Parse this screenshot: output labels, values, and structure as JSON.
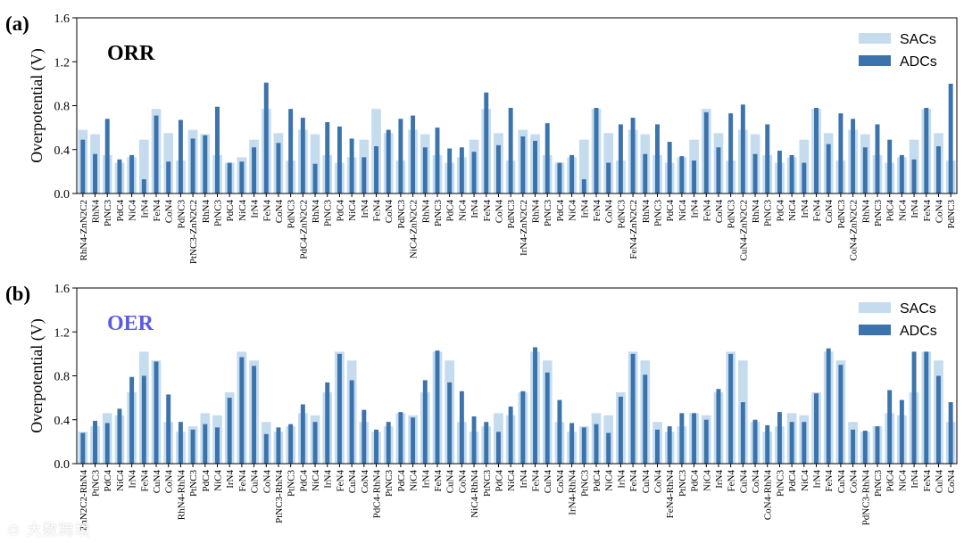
{
  "chart_data": [
    {
      "type": "bar",
      "panel_label": "(a)",
      "title": "ORR",
      "title_color": "#000000",
      "ylabel": "Overpotential (V)",
      "xlabel": "",
      "ylim": [
        0,
        1.6
      ],
      "yticks": [
        "0.0",
        "0.4",
        "0.8",
        "1.2",
        "1.6"
      ],
      "legend_position": "top-right",
      "categories": [
        "RhN4-ZnN2C2",
        "RhN4",
        "PtNC3",
        "PdC4",
        "NiC4",
        "IrN4",
        "FeN4",
        "CoN4",
        "PdNC3",
        "PtNC3-ZnN2C2",
        "RhN4",
        "PtNC3",
        "PdC4",
        "NiC4",
        "IrN4",
        "FeN4",
        "CoN4",
        "PdNC3",
        "PdC4-ZnN2C2",
        "RhN4",
        "PtNC3",
        "PdC4",
        "NiC4",
        "IrN4",
        "FeN4",
        "CoN4",
        "PdNC3",
        "NiC4-ZnN2C2",
        "RhN4",
        "PtNC3",
        "PdC4",
        "NiC4",
        "IrN4",
        "FeN4",
        "CoN4",
        "PdNC3",
        "IrN4-ZnN2C2",
        "RhN4",
        "PtNC3",
        "PdC4",
        "NiC4",
        "IrN4",
        "FeN4",
        "CoN4",
        "PdNC3",
        "FeN4-ZnN2C2",
        "RhN4",
        "PtNC3",
        "PdC4",
        "NiC4",
        "IrN4",
        "FeN4",
        "CoN4",
        "PdNC3",
        "CuN4-ZnN2C2",
        "RhN4",
        "PtNC3",
        "PdC4",
        "NiC4",
        "IrN4",
        "FeN4",
        "CoN4",
        "PdNC3",
        "CoN4-ZnN2C2",
        "RhN4",
        "PtNC3",
        "PdC4",
        "NiC4",
        "IrN4",
        "FeN4",
        "CoN4",
        "PdNC3"
      ],
      "series": [
        {
          "name": "SACs",
          "color": "#c5dcef",
          "values": [
            0.58,
            0.54,
            0.35,
            0.28,
            0.33,
            0.49,
            0.77,
            0.55,
            0.3,
            0.58,
            0.54,
            0.35,
            0.28,
            0.33,
            0.49,
            0.77,
            0.55,
            0.3,
            0.58,
            0.54,
            0.35,
            0.28,
            0.33,
            0.49,
            0.77,
            0.55,
            0.3,
            0.58,
            0.54,
            0.35,
            0.28,
            0.33,
            0.49,
            0.77,
            0.55,
            0.3,
            0.58,
            0.54,
            0.35,
            0.28,
            0.33,
            0.49,
            0.77,
            0.55,
            0.3,
            0.58,
            0.54,
            0.35,
            0.28,
            0.33,
            0.49,
            0.77,
            0.55,
            0.3,
            0.58,
            0.54,
            0.35,
            0.28,
            0.33,
            0.49,
            0.77,
            0.55,
            0.3,
            0.58,
            0.54,
            0.35,
            0.28,
            0.33,
            0.49,
            0.77,
            0.55,
            0.3
          ]
        },
        {
          "name": "ADCs",
          "color": "#3b73ac",
          "values": [
            0.49,
            0.36,
            0.68,
            0.31,
            0.35,
            0.13,
            0.71,
            0.29,
            0.67,
            0.5,
            0.53,
            0.79,
            0.28,
            0.29,
            0.42,
            1.01,
            0.46,
            0.77,
            0.69,
            0.27,
            0.65,
            0.61,
            0.5,
            0.33,
            0.43,
            0.58,
            0.68,
            0.71,
            0.42,
            0.6,
            0.41,
            0.42,
            0.38,
            0.92,
            0.44,
            0.78,
            0.52,
            0.48,
            0.64,
            0.28,
            0.35,
            0.13,
            0.78,
            0.28,
            0.63,
            0.69,
            0.36,
            0.63,
            0.47,
            0.34,
            0.3,
            0.74,
            0.42,
            0.73,
            0.81,
            0.36,
            0.63,
            0.39,
            0.35,
            0.28,
            0.78,
            0.45,
            0.73,
            0.68,
            0.42,
            0.63,
            0.49,
            0.35,
            0.31,
            0.78,
            0.43,
            1.0
          ]
        }
      ]
    },
    {
      "type": "bar",
      "panel_label": "(b)",
      "title": "OER",
      "title_color": "#5a5ae8",
      "ylabel": "Overpotential (V)",
      "xlabel": "",
      "ylim": [
        0,
        1.6
      ],
      "yticks": [
        "0.0",
        "0.4",
        "0.8",
        "1.2",
        "1.6"
      ],
      "legend_position": "top-right",
      "categories": [
        "ZnN2C2-RhN4",
        "PtNC3",
        "PdC4",
        "NiC4",
        "IrN4",
        "FeN4",
        "CuN4",
        "CoN4",
        "RhN4-RhN4",
        "PtNC3",
        "PdC4",
        "NiC4",
        "IrN4",
        "FeN4",
        "CuN4",
        "CoN4",
        "PtNC3-RhN4",
        "PtNC3",
        "PdC4",
        "NiC4",
        "IrN4",
        "FeN4",
        "CuN4",
        "CoN4",
        "PdC4-RhN4",
        "PtNC3",
        "PdC4",
        "NiC4",
        "IrN4",
        "FeN4",
        "CuN4",
        "CoN4",
        "NiC4-RhN4",
        "PtNC3",
        "PdC4",
        "NiC4",
        "IrN4",
        "FeN4",
        "CuN4",
        "CoN4",
        "IrN4-RhN4",
        "PtNC3",
        "PdC4",
        "NiC4",
        "IrN4",
        "FeN4",
        "CuN4",
        "CoN4",
        "FeN4-RhN4",
        "PtNC3",
        "PdC4",
        "NiC4",
        "IrN4",
        "FeN4",
        "CuN4",
        "CoN4",
        "CoN4-RhN4",
        "PtNC3",
        "PdC4",
        "NiC4",
        "IrN4",
        "FeN4",
        "CuN4",
        "CoN4",
        "PdNC3-RhN4",
        "PtNC3",
        "PdC4",
        "NiC4",
        "IrN4",
        "FeN4",
        "CuN4",
        "CoN4"
      ],
      "series": [
        {
          "name": "SACs",
          "color": "#c5dcef",
          "values": [
            0.29,
            0.34,
            0.46,
            0.44,
            0.65,
            1.02,
            0.94,
            0.38,
            0.29,
            0.34,
            0.46,
            0.44,
            0.65,
            1.02,
            0.94,
            0.38,
            0.29,
            0.34,
            0.46,
            0.44,
            0.65,
            1.02,
            0.94,
            0.38,
            0.29,
            0.34,
            0.46,
            0.44,
            0.65,
            1.02,
            0.94,
            0.38,
            0.29,
            0.34,
            0.46,
            0.44,
            0.65,
            1.02,
            0.94,
            0.38,
            0.29,
            0.34,
            0.46,
            0.44,
            0.65,
            1.02,
            0.94,
            0.38,
            0.29,
            0.34,
            0.46,
            0.44,
            0.65,
            1.02,
            0.94,
            0.38,
            0.29,
            0.34,
            0.46,
            0.44,
            0.65,
            1.02,
            0.94,
            0.38,
            0.29,
            0.34,
            0.46,
            0.44,
            0.65,
            1.02,
            0.94,
            0.38
          ]
        },
        {
          "name": "ADCs",
          "color": "#3b73ac",
          "values": [
            0.28,
            0.39,
            0.37,
            0.5,
            0.79,
            0.8,
            0.93,
            0.63,
            0.38,
            0.31,
            0.36,
            0.33,
            0.6,
            0.97,
            0.89,
            0.27,
            0.33,
            0.36,
            0.54,
            0.38,
            0.74,
            1.0,
            0.76,
            0.49,
            0.31,
            0.38,
            0.47,
            0.42,
            0.76,
            1.03,
            0.74,
            0.66,
            0.43,
            0.38,
            0.29,
            0.52,
            0.66,
            1.06,
            0.83,
            0.58,
            0.37,
            0.33,
            0.36,
            0.28,
            0.61,
            1.0,
            0.81,
            0.31,
            0.34,
            0.46,
            0.46,
            0.4,
            0.68,
            1.0,
            0.56,
            0.4,
            0.35,
            0.47,
            0.38,
            0.38,
            0.64,
            1.05,
            0.9,
            0.31,
            0.3,
            0.34,
            0.67,
            0.58,
            1.02,
            1.02,
            0.8,
            0.56
          ]
        }
      ]
    }
  ],
  "watermark": "⊙ 大数跨境"
}
